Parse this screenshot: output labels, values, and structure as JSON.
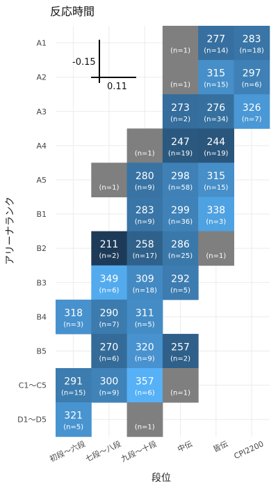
{
  "chart_data": {
    "type": "heatmap",
    "title": "反応時間",
    "xlabel": "段位",
    "ylabel": "アリーナランク",
    "x_categories": [
      "初段～六段",
      "七段～八段",
      "九段～十段",
      "中伝",
      "皆伝",
      "CPI2200"
    ],
    "y_categories": [
      "A1",
      "A2",
      "A3",
      "A4",
      "A5",
      "B1",
      "B2",
      "B3",
      "B4",
      "B5",
      "C1～C5",
      "D1～D5"
    ],
    "value_range": [
      211,
      357
    ],
    "legend_marks": {
      "x": "0.11",
      "y": "-0.15"
    },
    "cells": [
      {
        "x": "中伝",
        "y": "A1",
        "value": null,
        "n": "(n=1)"
      },
      {
        "x": "皆伝",
        "y": "A1",
        "value": "277",
        "n": "(n=14)"
      },
      {
        "x": "CPI2200",
        "y": "A1",
        "value": "283",
        "n": "(n=18)"
      },
      {
        "x": "中伝",
        "y": "A2",
        "value": null,
        "n": "(n=1)"
      },
      {
        "x": "皆伝",
        "y": "A2",
        "value": "315",
        "n": "(n=15)"
      },
      {
        "x": "CPI2200",
        "y": "A2",
        "value": "297",
        "n": "(n=6)"
      },
      {
        "x": "中伝",
        "y": "A3",
        "value": "273",
        "n": "(n=2)"
      },
      {
        "x": "皆伝",
        "y": "A3",
        "value": "276",
        "n": "(n=34)"
      },
      {
        "x": "CPI2200",
        "y": "A3",
        "value": "326",
        "n": "(n=7)"
      },
      {
        "x": "九段～十段",
        "y": "A4",
        "value": null,
        "n": "(n=1)"
      },
      {
        "x": "中伝",
        "y": "A4",
        "value": "247",
        "n": "(n=19)"
      },
      {
        "x": "皆伝",
        "y": "A4",
        "value": "244",
        "n": "(n=19)"
      },
      {
        "x": "七段～八段",
        "y": "A5",
        "value": null,
        "n": "(n=1)"
      },
      {
        "x": "九段～十段",
        "y": "A5",
        "value": "280",
        "n": "(n=9)"
      },
      {
        "x": "中伝",
        "y": "A5",
        "value": "298",
        "n": "(n=58)"
      },
      {
        "x": "皆伝",
        "y": "A5",
        "value": "315",
        "n": "(n=15)"
      },
      {
        "x": "九段～十段",
        "y": "B1",
        "value": "283",
        "n": "(n=9)"
      },
      {
        "x": "中伝",
        "y": "B1",
        "value": "299",
        "n": "(n=36)"
      },
      {
        "x": "皆伝",
        "y": "B1",
        "value": "338",
        "n": "(n=3)"
      },
      {
        "x": "七段～八段",
        "y": "B2",
        "value": "211",
        "n": "(n=2)"
      },
      {
        "x": "九段～十段",
        "y": "B2",
        "value": "258",
        "n": "(n=17)"
      },
      {
        "x": "中伝",
        "y": "B2",
        "value": "286",
        "n": "(n=25)"
      },
      {
        "x": "皆伝",
        "y": "B2",
        "value": null,
        "n": "(n=1)"
      },
      {
        "x": "七段～八段",
        "y": "B3",
        "value": "349",
        "n": "(n=6)"
      },
      {
        "x": "九段～十段",
        "y": "B3",
        "value": "309",
        "n": "(n=18)"
      },
      {
        "x": "中伝",
        "y": "B3",
        "value": "292",
        "n": "(n=5)"
      },
      {
        "x": "初段～六段",
        "y": "B4",
        "value": "318",
        "n": "(n=3)"
      },
      {
        "x": "七段～八段",
        "y": "B4",
        "value": "290",
        "n": "(n=7)"
      },
      {
        "x": "九段～十段",
        "y": "B4",
        "value": "311",
        "n": "(n=5)"
      },
      {
        "x": "七段～八段",
        "y": "B5",
        "value": "270",
        "n": "(n=6)"
      },
      {
        "x": "九段～十段",
        "y": "B5",
        "value": "320",
        "n": "(n=9)"
      },
      {
        "x": "中伝",
        "y": "B5",
        "value": "257",
        "n": "(n=2)"
      },
      {
        "x": "初段～六段",
        "y": "C1～C5",
        "value": "291",
        "n": "(n=15)"
      },
      {
        "x": "七段～八段",
        "y": "C1～C5",
        "value": "300",
        "n": "(n=9)"
      },
      {
        "x": "九段～十段",
        "y": "C1～C5",
        "value": "357",
        "n": "(n=6)"
      },
      {
        "x": "中伝",
        "y": "C1～C5",
        "value": null,
        "n": "(n=1)"
      },
      {
        "x": "初段～六段",
        "y": "D1～D5",
        "value": "321",
        "n": "(n=5)"
      },
      {
        "x": "九段～十段",
        "y": "D1～D5",
        "value": null,
        "n": "(n=1)"
      }
    ],
    "colors": {
      "low": "#1d3b58",
      "high": "#56b1f7",
      "na": "#7f7f7f",
      "grid": "#ebebeb"
    },
    "legend_position": "none",
    "grid": true
  }
}
